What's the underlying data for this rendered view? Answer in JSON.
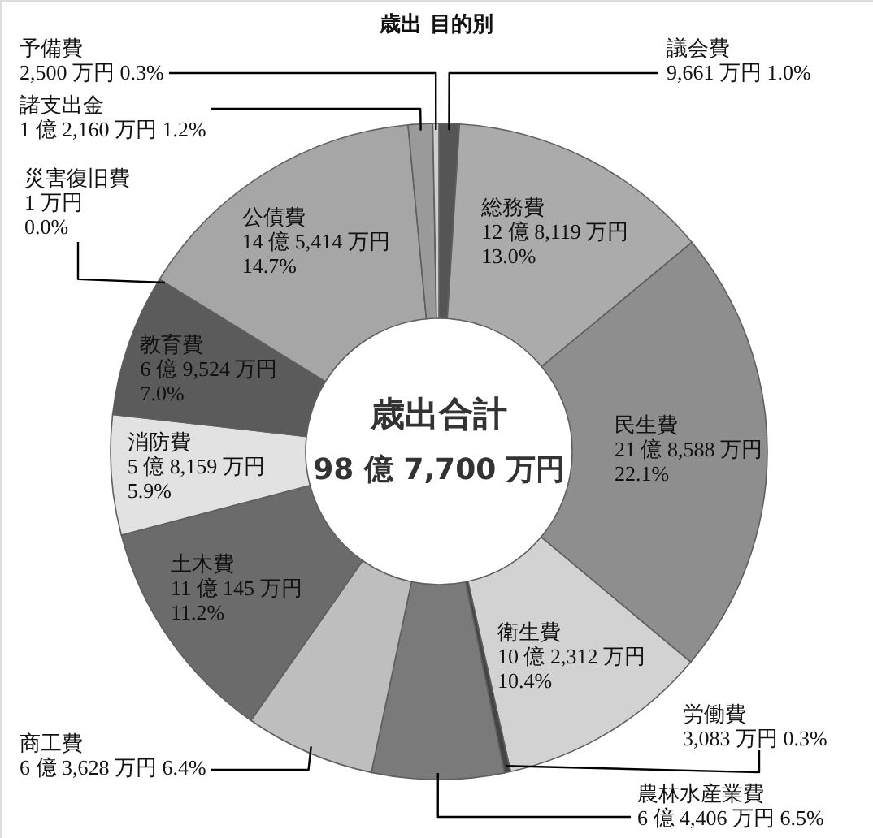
{
  "chart_data": {
    "type": "donut",
    "title": "歳出 目的別",
    "categories": [
      "議会費",
      "総務費",
      "民生費",
      "衛生費",
      "労働費",
      "農林水産業費",
      "商工費",
      "土木費",
      "消防費",
      "教育費",
      "災害復旧費",
      "公債費",
      "諸支出金",
      "予備費"
    ],
    "values": [
      1.0,
      13.0,
      22.1,
      10.4,
      0.3,
      6.5,
      6.4,
      11.2,
      5.9,
      7.0,
      0.0,
      14.7,
      1.2,
      0.3
    ],
    "colors": [
      "#555555",
      "#ababab",
      "#8e8e8e",
      "#d2d2d2",
      "#444444",
      "#7a7a7a",
      "#bebebe",
      "#6b6b6b",
      "#e2e2e2",
      "#5b5b5b",
      "#909090",
      "#a6a6a6",
      "#9a9a9a",
      "#cfcfcf"
    ],
    "value_labels": [
      "9,661 万円 1.0%",
      "12 億 8,119 万円\n13.0%",
      "21 億 8,588 万円\n22.1%",
      "10 億 2,312 万円\n10.4%",
      "3,083 万円 0.3%",
      "6 億 4,406 万円 6.5%",
      "6 億 3,628 万円 6.4%",
      "11 億 145 万円\n11.2%",
      "5 億 8,159 万円\n5.9%",
      "6 億 9,524 万円\n7.0%",
      "1 万円\n0.0%",
      "14 億 5,414 万円\n14.7%",
      "1 億 2,160 万円 1.2%",
      "2,500 万円 0.3%"
    ],
    "annotations": [
      "歳出合計",
      "98 億 7,700 万円"
    ]
  }
}
